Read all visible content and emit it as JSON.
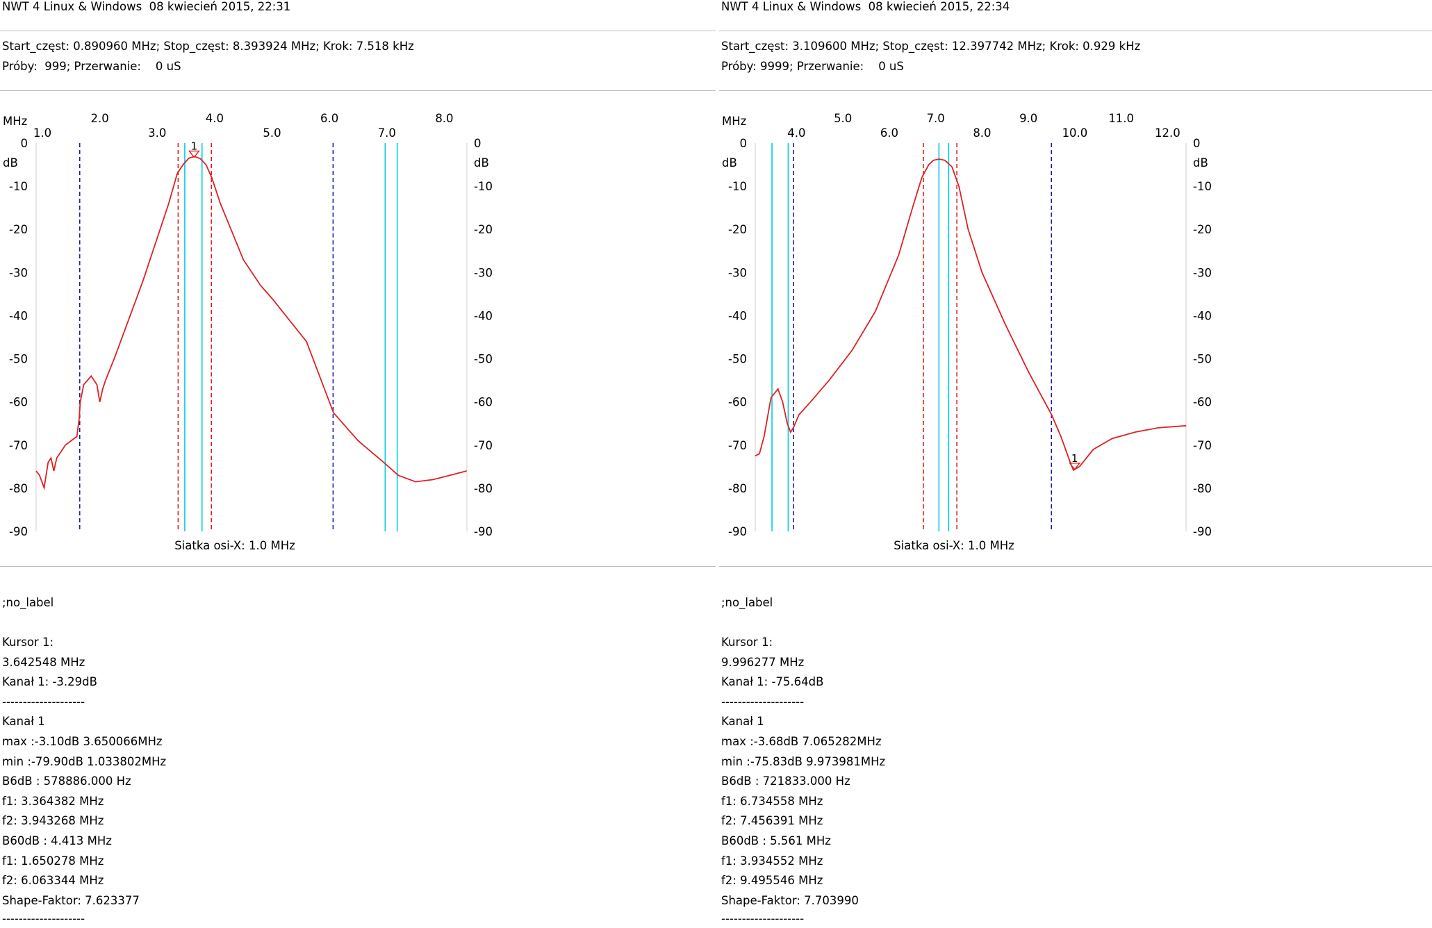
{
  "panels": [
    {
      "title": "NWT 4 Linux & Windows  08 kwiecień 2015, 22:31",
      "params_line1": "Start_częst: 0.890960 MHz; Stop_częst: 8.393924 MHz; Krok: 7.518 kHz",
      "params_line2": "Próby:  999; Przerwanie:    0 uS",
      "label": ";no_label",
      "results": [
        "Kursor 1:",
        "3.642548 MHz",
        "Kanał 1: -3.29dB",
        "--------------------",
        "Kanał 1",
        "max :-3.10dB 3.650066MHz",
        "min :-79.90dB 1.033802MHz",
        "B6dB : 578886.000 Hz",
        "f1: 3.364382 MHz",
        "f2: 3.943268 MHz",
        "B60dB : 4.413 MHz",
        "f1: 1.650278 MHz",
        "f2: 6.063344 MHz",
        "Shape-Faktor: 7.623377",
        "--------------------"
      ]
    },
    {
      "title": "NWT 4 Linux & Windows  08 kwiecień 2015, 22:34",
      "params_line1": "Start_częst: 3.109600 MHz; Stop_częst: 12.397742 MHz; Krok: 0.929 kHz",
      "params_line2": "Próby: 9999; Przerwanie:    0 uS",
      "label": ";no_label",
      "results": [
        "Kursor 1:",
        "9.996277 MHz",
        "Kanał 1: -75.64dB",
        "--------------------",
        "Kanał 1",
        "max :-3.68dB 7.065282MHz",
        "min :-75.83dB 9.973981MHz",
        "B6dB : 721833.000 Hz",
        "f1: 6.734558 MHz",
        "f2: 7.456391 MHz",
        "B60dB : 5.561 MHz",
        "f1: 3.934552 MHz",
        "f2: 9.495546 MHz",
        "Shape-Faktor: 7.703990",
        "--------------------"
      ]
    }
  ],
  "chart_data": [
    {
      "type": "line",
      "x_unit": "MHz",
      "y_unit": "dB",
      "xlim": [
        0.89096,
        8.393924
      ],
      "ylim": [
        -90,
        0
      ],
      "x_ticks_top": [
        "2.0",
        "4.0",
        "6.0",
        "8.0"
      ],
      "x_ticks_bottom": [
        "1.0",
        "3.0",
        "5.0",
        "7.0"
      ],
      "y_ticks": [
        "0",
        "-10",
        "-20",
        "-30",
        "-40",
        "-50",
        "-60",
        "-70",
        "-80",
        "-90"
      ],
      "xlabel": "Siatka osi-X: 1.0 MHz",
      "grid": false,
      "series": [
        {
          "color": "#e02020",
          "x": [
            0.89,
            0.95,
            1.03,
            1.1,
            1.15,
            1.2,
            1.25,
            1.3,
            1.4,
            1.5,
            1.6,
            1.64,
            1.66,
            1.72,
            1.85,
            1.95,
            2.0,
            2.05,
            2.1,
            2.25,
            2.5,
            2.75,
            3.0,
            3.2,
            3.35,
            3.45,
            3.55,
            3.65,
            3.75,
            3.85,
            3.95,
            4.1,
            4.3,
            4.5,
            4.8,
            5.0,
            5.3,
            5.6,
            6.07,
            6.5,
            6.9,
            7.2,
            7.5,
            7.8,
            8.1,
            8.39
          ],
          "y": [
            -76,
            -77,
            -79.9,
            -74,
            -73,
            -76,
            -73,
            -72,
            -70,
            -69,
            -68,
            -64,
            -60,
            -56,
            -54,
            -56,
            -60,
            -57,
            -55,
            -50,
            -41,
            -32,
            -22,
            -14,
            -7,
            -5,
            -3.5,
            -3.1,
            -3.6,
            -5,
            -8,
            -14,
            -20.5,
            -27,
            -33,
            -36,
            -41,
            -46,
            -62.5,
            -69,
            -73.5,
            -77,
            -78.5,
            -78,
            -77,
            -76
          ]
        }
      ],
      "markers": [
        {
          "label": "1",
          "x": 3.642548,
          "y": -3.29
        }
      ],
      "vlines": [
        {
          "x": 1.650278,
          "color": "#1a1ab4",
          "style": "dashed"
        },
        {
          "x": 6.063344,
          "color": "#1a1ab4",
          "style": "dashed"
        },
        {
          "x": 3.364382,
          "color": "#e02020",
          "style": "dashed"
        },
        {
          "x": 3.943268,
          "color": "#e02020",
          "style": "dashed"
        },
        {
          "x": 3.48,
          "color": "#00ccdd",
          "style": "solid"
        },
        {
          "x": 3.78,
          "color": "#00ccdd",
          "style": "solid"
        },
        {
          "x": 6.97,
          "color": "#00ccdd",
          "style": "solid"
        },
        {
          "x": 7.18,
          "color": "#00ccdd",
          "style": "solid"
        }
      ]
    },
    {
      "type": "line",
      "x_unit": "MHz",
      "y_unit": "dB",
      "xlim": [
        3.1096,
        12.397742
      ],
      "ylim": [
        -90,
        0
      ],
      "x_ticks_top": [
        "5.0",
        "7.0",
        "9.0",
        "11.0"
      ],
      "x_ticks_bottom": [
        "4.0",
        "6.0",
        "8.0",
        "10.0",
        "12.0"
      ],
      "y_ticks": [
        "0",
        "-10",
        "-20",
        "-30",
        "-40",
        "-50",
        "-60",
        "-70",
        "-80",
        "-90"
      ],
      "xlabel": "Siatka osi-X: 1.0 MHz",
      "grid": false,
      "series": [
        {
          "color": "#e02020",
          "x": [
            3.11,
            3.2,
            3.3,
            3.45,
            3.6,
            3.7,
            3.8,
            3.87,
            3.93,
            4.05,
            4.3,
            4.7,
            5.2,
            5.7,
            6.2,
            6.5,
            6.7,
            6.85,
            6.95,
            7.07,
            7.2,
            7.35,
            7.5,
            7.7,
            8.0,
            8.5,
            9.0,
            9.5,
            9.7,
            9.9,
            9.97,
            10.1,
            10.4,
            10.8,
            11.3,
            11.8,
            12.4
          ],
          "y": [
            -72.5,
            -72,
            -68,
            -59,
            -57,
            -60,
            -65,
            -67,
            -66,
            -63,
            -60,
            -55,
            -48,
            -39,
            -26,
            -15,
            -8,
            -5,
            -4,
            -3.7,
            -4,
            -5.5,
            -10,
            -20,
            -30,
            -42,
            -53,
            -63,
            -68,
            -74,
            -75.8,
            -75,
            -71,
            -68.5,
            -67,
            -66,
            -65.5
          ]
        }
      ],
      "markers": [
        {
          "label": "1",
          "x": 9.996277,
          "y": -75.64
        }
      ],
      "vlines": [
        {
          "x": 3.934552,
          "color": "#1a1ab4",
          "style": "dashed"
        },
        {
          "x": 9.495546,
          "color": "#1a1ab4",
          "style": "dashed"
        },
        {
          "x": 6.734558,
          "color": "#e02020",
          "style": "dashed"
        },
        {
          "x": 7.456391,
          "color": "#e02020",
          "style": "dashed"
        },
        {
          "x": 3.47,
          "color": "#00ccdd",
          "style": "solid"
        },
        {
          "x": 3.82,
          "color": "#00ccdd",
          "style": "solid"
        },
        {
          "x": 7.07,
          "color": "#00ccdd",
          "style": "solid"
        },
        {
          "x": 7.28,
          "color": "#00ccdd",
          "style": "solid"
        }
      ]
    }
  ]
}
